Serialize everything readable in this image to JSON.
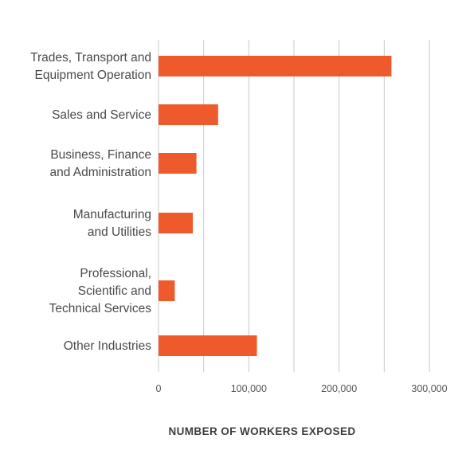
{
  "chart_data": {
    "type": "bar",
    "orientation": "horizontal",
    "categories": [
      [
        "Trades, Transport and",
        "Equipment Operation"
      ],
      [
        "Sales and Service"
      ],
      [
        "Business, Finance",
        "and Administration"
      ],
      [
        "Manufacturing",
        "and Utilities"
      ],
      [
        "Professional,",
        "Scientific and",
        "Technical Services"
      ],
      [
        "Other Industries"
      ]
    ],
    "values": [
      258000,
      66000,
      42000,
      38000,
      18000,
      109000
    ],
    "xlabel": "NUMBER OF WORKERS EXPOSED",
    "xlim": [
      0,
      300000
    ],
    "x_ticks": [
      0,
      50000,
      100000,
      150000,
      200000,
      250000,
      300000
    ],
    "x_tick_labels": [
      "0",
      "",
      "100,000",
      "",
      "200,000",
      "",
      "300,000"
    ],
    "grid": "vertical",
    "legend": "none",
    "colors": {
      "bar": "#ee5a2c",
      "grid": "#c8c8c8",
      "label": "#4a4a4a",
      "axis_title": "#3d3d3d"
    }
  }
}
